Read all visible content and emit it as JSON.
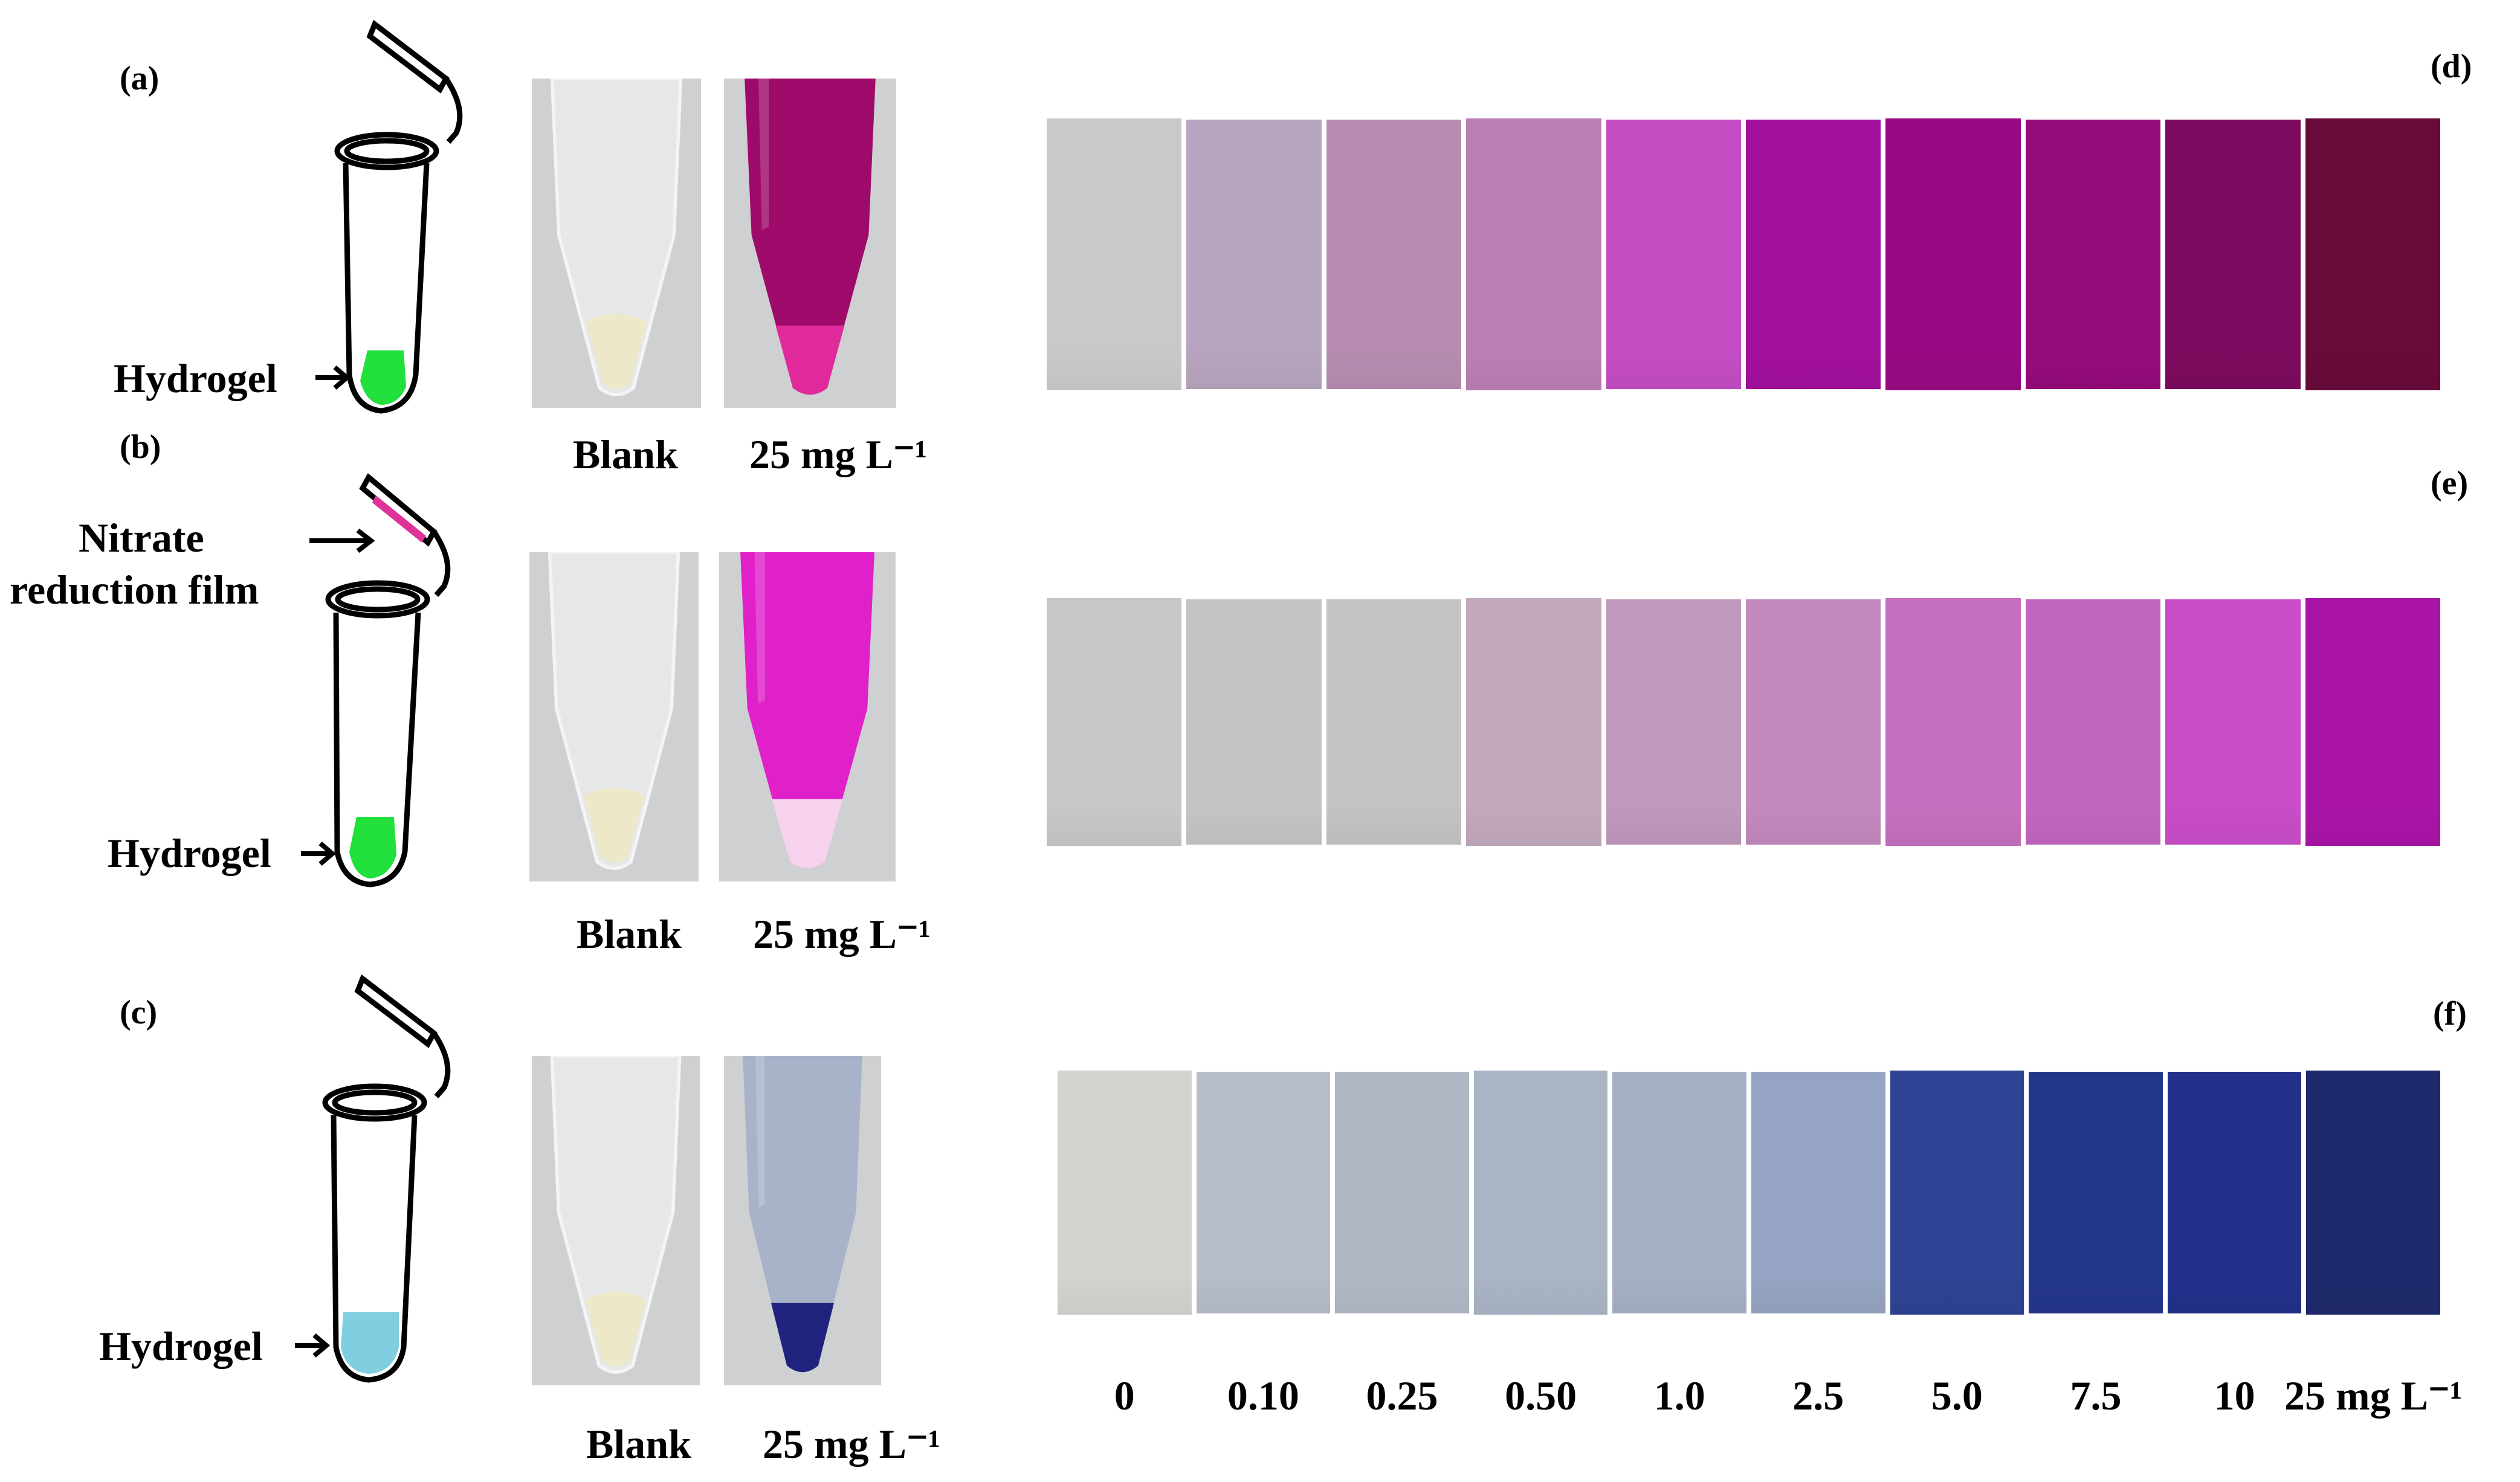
{
  "panels": {
    "a": "(a)",
    "b": "(b)",
    "c": "(c)",
    "d": "(d)",
    "e": "(e)",
    "f": "(f)"
  },
  "schematics": {
    "hydrogel_label": "Hydrogel",
    "film_label_line1": "Nitrate",
    "film_label_line2": "reduction film",
    "hydrogel_color_ab": "#22e03c",
    "hydrogel_color_c": "#7fcfe0",
    "film_color": "#e0339a"
  },
  "photos": {
    "blank_label": "Blank",
    "sample_label": "25 mg L⁻¹",
    "rows": [
      {
        "blank_bg": "#cfd0d2",
        "sample_liquid": "#9e0a6a",
        "sample_pellet": "#e02a9c"
      },
      {
        "blank_bg": "#cfd0d2",
        "sample_liquid": "#e020c8",
        "sample_pellet": "#f7d2ee"
      },
      {
        "blank_bg": "#cfd0d2",
        "sample_liquid": "#a8b2c9",
        "sample_pellet": "#1f237e"
      }
    ]
  },
  "concentration_labels": [
    "0",
    "0.10",
    "0.25",
    "0.50",
    "1.0",
    "2.5",
    "5.0",
    "7.5",
    "10",
    "25 mg L⁻¹"
  ],
  "strips": {
    "d": [
      "#c9c9cb",
      "#b7a4be",
      "#b68db0",
      "#bb7fb6",
      "#c44dc4",
      "#a3109e",
      "#980a83",
      "#950b7b",
      "#7c0a5e",
      "#680a3a"
    ],
    "e": [
      "#c7c7c9",
      "#c4c4c6",
      "#c3c3c5",
      "#c2a8bb",
      "#bf98bb",
      "#c289be",
      "#c570be",
      "#c266bf",
      "#c84cc8",
      "#a914a6"
    ],
    "f": [
      "#d2d3cf",
      "#b5bdc9",
      "#b0b8c6",
      "#a9b4c5",
      "#a6b0c5",
      "#95a4c2",
      "#2e4393",
      "#24368c",
      "#22308a",
      "#1f2a6c"
    ]
  }
}
